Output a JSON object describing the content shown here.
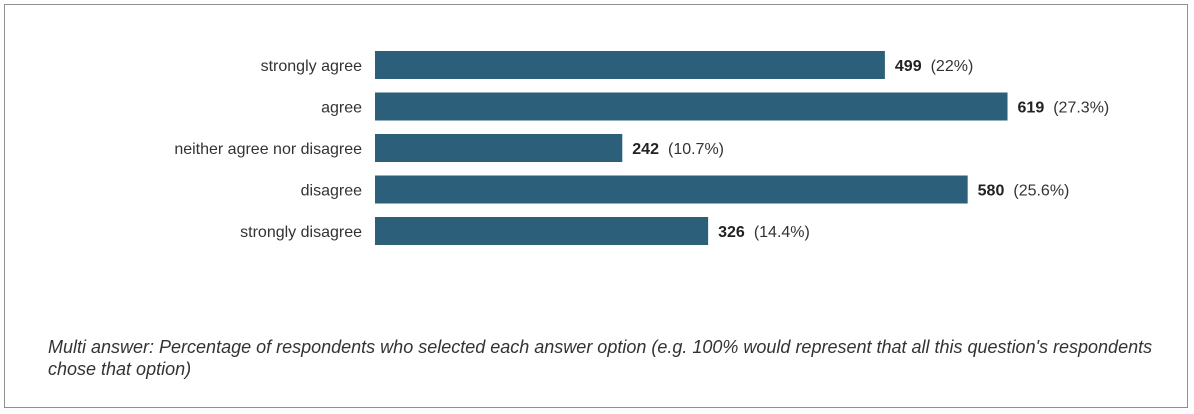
{
  "chart_data": {
    "type": "bar",
    "orientation": "horizontal",
    "categories": [
      "strongly agree",
      "agree",
      "neither agree nor disagree",
      "disagree",
      "strongly disagree"
    ],
    "values": [
      499,
      619,
      242,
      580,
      326
    ],
    "percent_labels": [
      "(22%)",
      "(27.3%)",
      "(10.7%)",
      "(25.6%)",
      "(14.4%)"
    ],
    "bar_color": "#2b5f7a",
    "grid": false,
    "legend": "none"
  },
  "note": "Multi answer: Percentage of respondents who selected each answer option (e.g. 100% would represent that all this question's respondents chose that option)"
}
